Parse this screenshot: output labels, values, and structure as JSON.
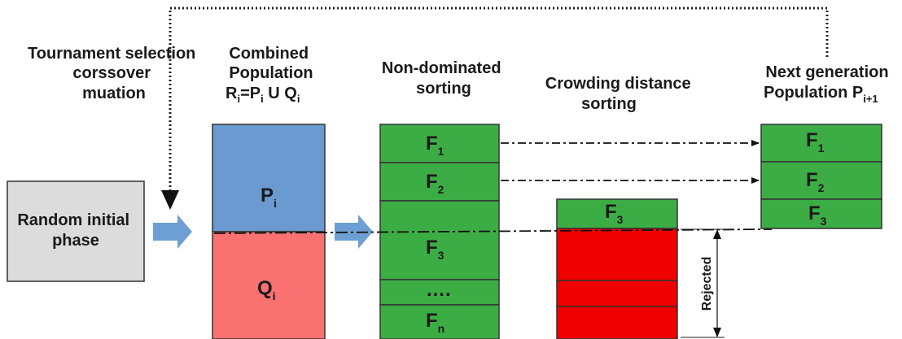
{
  "labels": {
    "tournament": [
      "Tournament selection",
      "corssover",
      "muation"
    ],
    "combined_line1": "Combined",
    "combined_line2": "Population",
    "combined_formula": {
      "R": "R",
      "i": "i",
      "eq": "=P",
      "i2": "i",
      "union": " U Q",
      "i3": "i"
    },
    "nondominated": [
      "Non-dominated",
      "sorting"
    ],
    "crowding": [
      "Crowding distance",
      "sorting"
    ],
    "nextgen_line1": "Next generation",
    "nextgen_line2": "Population P",
    "nextgen_sub": "i+1",
    "random_box": [
      "Random initial",
      "phase"
    ],
    "rejected": "Rejected"
  },
  "population": {
    "p": {
      "main": "P",
      "sub": "i"
    },
    "q": {
      "main": "Q",
      "sub": "i"
    }
  },
  "fronts": {
    "f1": {
      "main": "F",
      "sub": "1"
    },
    "f2": {
      "main": "F",
      "sub": "2"
    },
    "f3": {
      "main": "F",
      "sub": "3"
    },
    "dots": "….",
    "fn": {
      "main": "F",
      "sub": "n"
    }
  },
  "colors": {
    "blue": "#6a9ad0",
    "salmon": "#f97171",
    "green": "#3cad45",
    "red": "#f00000",
    "gray": "#dcdcdc",
    "arrow_fill": "#6e9fd4"
  }
}
